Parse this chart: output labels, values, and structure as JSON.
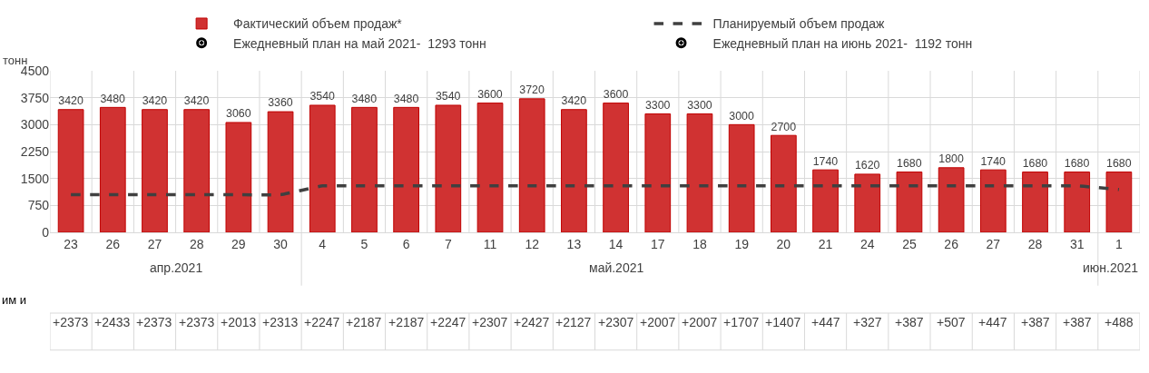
{
  "chart_data": {
    "type": "bar",
    "ylabel": "тонн",
    "categories": [
      "23",
      "26",
      "27",
      "28",
      "29",
      "30",
      "4",
      "5",
      "6",
      "7",
      "11",
      "12",
      "13",
      "14",
      "17",
      "18",
      "19",
      "20",
      "21",
      "24",
      "25",
      "26",
      "27",
      "28",
      "31",
      "1"
    ],
    "series": [
      {
        "name": "Фактический объем продаж*",
        "color": "#d03232",
        "values": [
          3420,
          3480,
          3420,
          3420,
          3060,
          3360,
          3540,
          3480,
          3480,
          3540,
          3600,
          3720,
          3420,
          3600,
          3300,
          3300,
          3000,
          2700,
          1740,
          1620,
          1680,
          1800,
          1740,
          1680,
          1680,
          1680
        ],
        "value_labels": [
          "3420",
          "3480",
          "3420",
          "3420",
          "3060",
          "3360",
          "3540",
          "3480",
          "3480",
          "3540",
          "3600",
          "3720",
          "3420",
          "3600",
          "3300",
          "3300",
          "3000",
          "2700",
          "1740",
          "1620",
          "1680",
          "1800",
          "1740",
          "1680",
          "1680",
          "1680"
        ]
      },
      {
        "name": "Планируемый объем продаж",
        "type": "line",
        "color": "#404040",
        "line_style": "dashed",
        "marker": "none",
        "values": [
          1047,
          1047,
          1047,
          1047,
          1047,
          1047,
          1293,
          1293,
          1293,
          1293,
          1293,
          1293,
          1293,
          1293,
          1293,
          1293,
          1293,
          1293,
          1293,
          1293,
          1293,
          1293,
          1293,
          1293,
          1293,
          1192
        ]
      },
      {
        "name": "Ежедневный план на май 2021-  1293 тонн",
        "type": "scatter",
        "color": "#000000",
        "marker": "circle",
        "values": [
          null,
          null,
          null,
          null,
          null,
          null,
          null,
          null,
          null,
          null,
          null,
          null,
          null,
          null,
          null,
          null,
          null,
          null,
          null,
          null,
          null,
          null,
          null,
          null,
          null,
          null
        ]
      },
      {
        "name": "Ежедневный план на июнь 2021-  1192 тонн",
        "type": "scatter",
        "color": "#000000",
        "marker": "circle",
        "values": [
          null,
          null,
          null,
          null,
          null,
          null,
          null,
          null,
          null,
          null,
          null,
          null,
          null,
          null,
          null,
          null,
          null,
          null,
          null,
          null,
          null,
          null,
          null,
          null,
          null,
          null
        ]
      }
    ],
    "ylim": [
      0,
      4500
    ],
    "yticks": [
      0,
      750,
      1500,
      2250,
      3000,
      3750,
      4500
    ],
    "grid": true,
    "legend": "top",
    "annotations": [
      "апр.2021",
      "май.2021",
      "июн.2021",
      "им и",
      "+2373",
      "+2433",
      "+2373",
      "+2373",
      "+2013",
      "+2313",
      "+2247",
      "+2187",
      "+2187",
      "+2247",
      "+2307",
      "+2427",
      "+2127",
      "+2307",
      "+2007",
      "+2007",
      "+1707",
      "+1407",
      "+447",
      "+327",
      "+387",
      "+507",
      "+447",
      "+387",
      "+387",
      "+488"
    ]
  }
}
